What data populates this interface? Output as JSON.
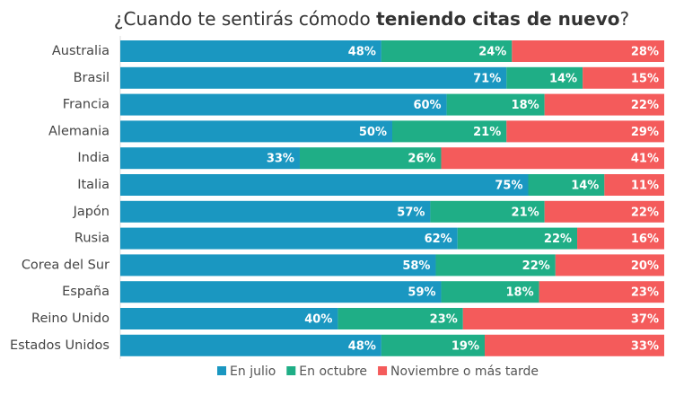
{
  "chart_data": {
    "type": "stacked-bar-horizontal",
    "title": [
      {
        "text": "¿Cuando te sentirás cómodo ",
        "bold": false
      },
      {
        "text": "teniendo citas de nuevo",
        "bold": true
      },
      {
        "text": "?",
        "bold": false
      }
    ],
    "categories": [
      "Australia",
      "Brasil",
      "Francia",
      "Alemania",
      "India",
      "Italia",
      "Japón",
      "Rusia",
      "Corea del Sur",
      "España",
      "Reino Unido",
      "Estados Unidos"
    ],
    "xlim": [
      0,
      100
    ],
    "legend": "bottom",
    "series": [
      {
        "name": "En julio",
        "color": "#1a97c1",
        "values": [
          48,
          71,
          60,
          50,
          33,
          75,
          57,
          62,
          58,
          59,
          40,
          48
        ],
        "value_labels": [
          "48%",
          "71%",
          "60%",
          "50%",
          "33%",
          "75%",
          "57%",
          "62%",
          "58%",
          "59%",
          "40%",
          "48%"
        ]
      },
      {
        "name": "En octubre",
        "color": "#1fae86",
        "values": [
          24,
          14,
          18,
          21,
          26,
          14,
          21,
          22,
          22,
          18,
          23,
          19
        ],
        "value_labels": [
          "24%",
          "14%",
          "18%",
          "21%",
          "26%",
          "14%",
          "21%",
          "22%",
          "22%",
          "18%",
          "23%",
          "19%"
        ]
      },
      {
        "name": "Noviembre o más tarde",
        "color": "#f45b5b",
        "values": [
          28,
          15,
          22,
          29,
          41,
          11,
          22,
          16,
          20,
          23,
          37,
          33
        ],
        "value_labels": [
          "28%",
          "15%",
          "22%",
          "29%",
          "41%",
          "11%",
          "22%",
          "16%",
          "20%",
          "23%",
          "37%",
          "33%"
        ]
      }
    ]
  }
}
